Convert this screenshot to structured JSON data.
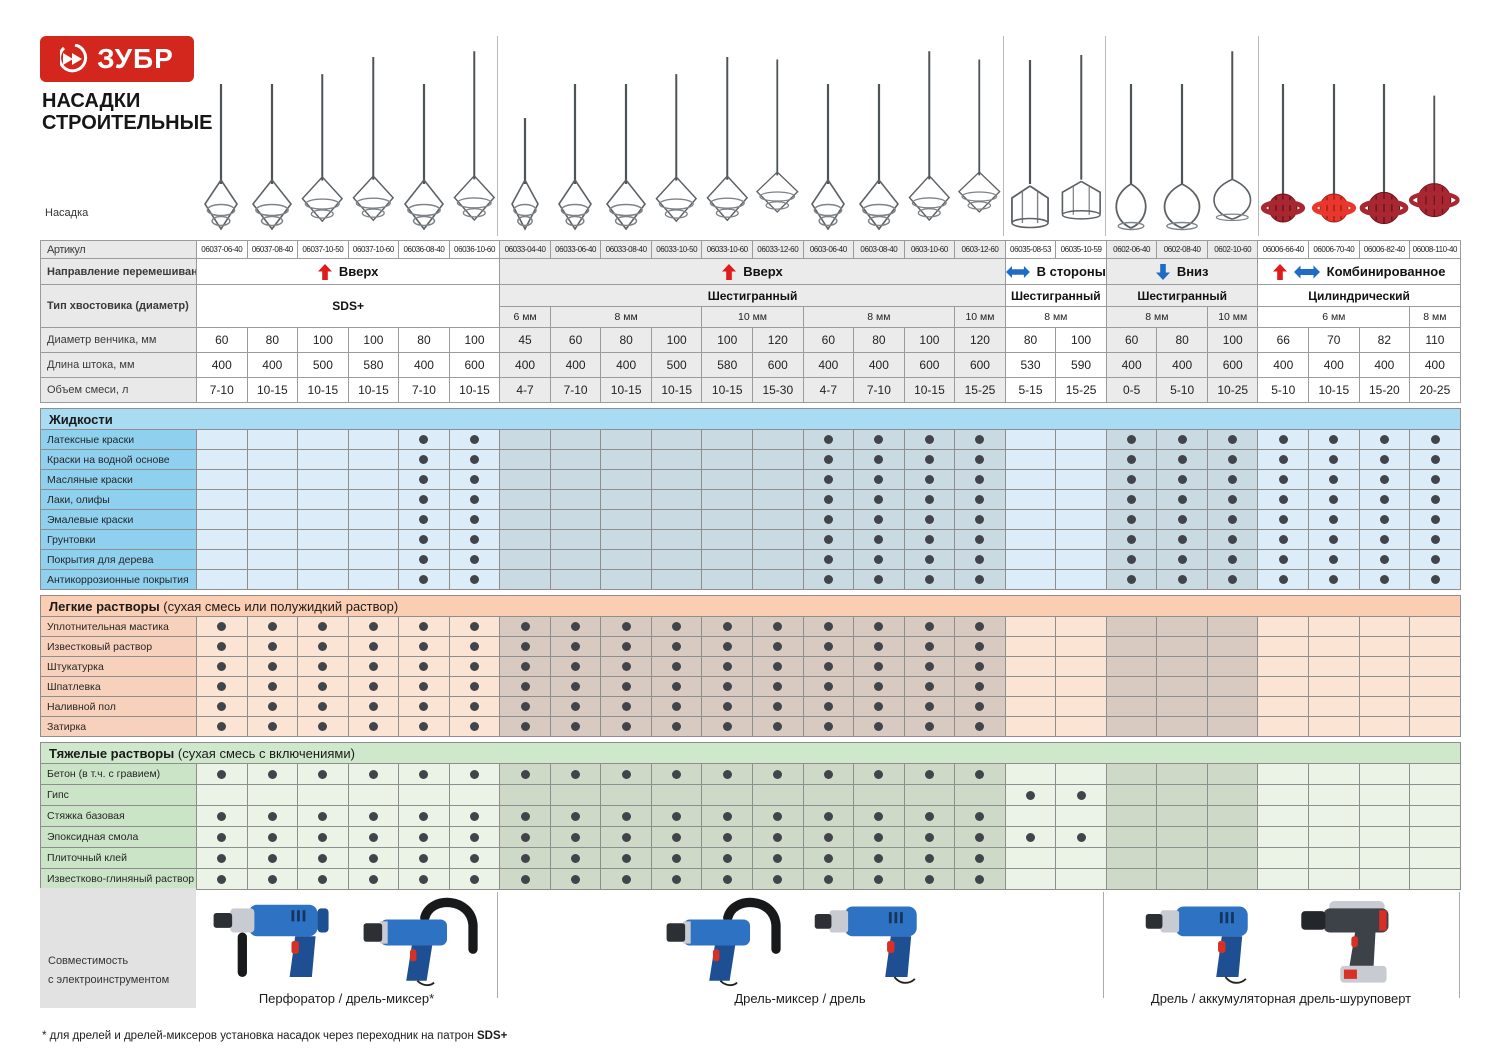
{
  "brand": {
    "logo_text": "ЗУБР",
    "title_line1": "НАСАДКИ",
    "title_line2": "СТРОИТЕЛЬНЫЕ"
  },
  "labels": {
    "nozzle": "Насадка",
    "article": "Артикул",
    "direction": "Направление перемешивания",
    "shank": "Тип хвостовика (диаметр)",
    "diameter": "Диаметр венчика, мм",
    "length": "Длина штока, мм",
    "volume": "Объем смеси, л"
  },
  "columns": [
    {
      "article": "06037-06-40",
      "diameter": "60",
      "length": "400",
      "volume": "7-10",
      "head": "spiral"
    },
    {
      "article": "06037-08-40",
      "diameter": "80",
      "length": "400",
      "volume": "10-15",
      "head": "spiral"
    },
    {
      "article": "06037-10-50",
      "diameter": "100",
      "length": "500",
      "volume": "10-15",
      "head": "spiral"
    },
    {
      "article": "06037-10-60",
      "diameter": "100",
      "length": "580",
      "volume": "10-15",
      "head": "spiral"
    },
    {
      "article": "06036-08-40",
      "diameter": "80",
      "length": "400",
      "volume": "7-10",
      "head": "spiral"
    },
    {
      "article": "06036-10-60",
      "diameter": "100",
      "length": "600",
      "volume": "10-15",
      "head": "spiral"
    },
    {
      "article": "06033-04-40",
      "diameter": "45",
      "length": "400",
      "volume": "4-7",
      "head": "spiral"
    },
    {
      "article": "06033-06-40",
      "diameter": "60",
      "length": "400",
      "volume": "7-10",
      "head": "spiral"
    },
    {
      "article": "06033-08-40",
      "diameter": "80",
      "length": "400",
      "volume": "10-15",
      "head": "spiral"
    },
    {
      "article": "06033-10-50",
      "diameter": "100",
      "length": "500",
      "volume": "10-15",
      "head": "spiral"
    },
    {
      "article": "06033-10-60",
      "diameter": "100",
      "length": "580",
      "volume": "10-15",
      "head": "spiral"
    },
    {
      "article": "06033-12-60",
      "diameter": "120",
      "length": "600",
      "volume": "15-30",
      "head": "spiral"
    },
    {
      "article": "0603-06-40",
      "diameter": "60",
      "length": "400",
      "volume": "4-7",
      "head": "spiral"
    },
    {
      "article": "0603-08-40",
      "diameter": "80",
      "length": "400",
      "volume": "7-10",
      "head": "spiral"
    },
    {
      "article": "0603-10-60",
      "diameter": "100",
      "length": "600",
      "volume": "10-15",
      "head": "spiral"
    },
    {
      "article": "0603-12-60",
      "diameter": "120",
      "length": "600",
      "volume": "15-25",
      "head": "spiral"
    },
    {
      "article": "06035-08-53",
      "diameter": "80",
      "length": "530",
      "volume": "5-15",
      "head": "cage"
    },
    {
      "article": "06035-10-59",
      "diameter": "100",
      "length": "590",
      "volume": "15-25",
      "head": "cage"
    },
    {
      "article": "0602-06-40",
      "diameter": "60",
      "length": "400",
      "volume": "0-5",
      "head": "paddle"
    },
    {
      "article": "0602-08-40",
      "diameter": "80",
      "length": "400",
      "volume": "5-10",
      "head": "paddle"
    },
    {
      "article": "0602-10-60",
      "diameter": "100",
      "length": "600",
      "volume": "10-25",
      "head": "paddle"
    },
    {
      "article": "06006-66-40",
      "diameter": "66",
      "length": "400",
      "volume": "5-10",
      "head": "ball"
    },
    {
      "article": "06006-70-40",
      "diameter": "70",
      "length": "400",
      "volume": "10-15",
      "head": "ball-bright"
    },
    {
      "article": "06006-82-40",
      "diameter": "82",
      "length": "400",
      "volume": "15-20",
      "head": "ball"
    },
    {
      "article": "06008-110-40",
      "diameter": "110",
      "length": "400",
      "volume": "20-25",
      "head": "ball"
    }
  ],
  "direction_groups": [
    {
      "label": "Вверх",
      "span": 6,
      "arrows": [
        "up"
      ]
    },
    {
      "label": "Вверх",
      "span": 10,
      "arrows": [
        "up"
      ]
    },
    {
      "label": "В стороны",
      "span": 2,
      "arrows": [
        "lr"
      ]
    },
    {
      "label": "Вниз",
      "span": 3,
      "arrows": [
        "down"
      ]
    },
    {
      "label": "Комбинированное",
      "span": 4,
      "arrows": [
        "up",
        "lr"
      ]
    }
  ],
  "shank_type_groups": [
    {
      "label": "SDS+",
      "span": 6,
      "rowspan": 2
    },
    {
      "label": "Шестигранный",
      "span": 10
    },
    {
      "label": "Шестигранный",
      "span": 2
    },
    {
      "label": "Шестигранный",
      "span": 3
    },
    {
      "label": "Цилиндрический",
      "span": 4
    }
  ],
  "shank_size_groups": [
    {
      "label": "6 мм",
      "span": 1
    },
    {
      "label": "8 мм",
      "span": 3
    },
    {
      "label": "10 мм",
      "span": 2
    },
    {
      "label": "8 мм",
      "span": 3
    },
    {
      "label": "10 мм",
      "span": 1
    },
    {
      "label": "8 мм",
      "span": 2
    },
    {
      "label": "8 мм",
      "span": 2
    },
    {
      "label": "10 мм",
      "span": 1
    },
    {
      "label": "6 мм",
      "span": 3
    },
    {
      "label": "8 мм",
      "span": 1
    }
  ],
  "bands": [
    {
      "span": 6,
      "shade": "light"
    },
    {
      "span": 10,
      "shade": "dark"
    },
    {
      "span": 2,
      "shade": "light"
    },
    {
      "span": 3,
      "shade": "dark"
    },
    {
      "span": 4,
      "shade": "light"
    }
  ],
  "sections": [
    {
      "id": "liquids",
      "title": "Жидкости",
      "subtitle": "",
      "colors": {
        "header": "#a9dcf3",
        "label": "#8fd0ee",
        "light": "#dcedf9",
        "dark": "#c9dae3"
      },
      "rows": [
        {
          "label": "Латексные краски",
          "dots": [
            5,
            6,
            13,
            14,
            15,
            16,
            19,
            20,
            21,
            22,
            23,
            24,
            25
          ]
        },
        {
          "label": "Краски на водной основе",
          "dots": [
            5,
            6,
            13,
            14,
            15,
            16,
            19,
            20,
            21,
            22,
            23,
            24,
            25
          ]
        },
        {
          "label": "Масляные краски",
          "dots": [
            5,
            6,
            13,
            14,
            15,
            16,
            19,
            20,
            21,
            22,
            23,
            24,
            25
          ]
        },
        {
          "label": "Лаки, олифы",
          "dots": [
            5,
            6,
            13,
            14,
            15,
            16,
            19,
            20,
            21,
            22,
            23,
            24,
            25
          ]
        },
        {
          "label": "Эмалевые краски",
          "dots": [
            5,
            6,
            13,
            14,
            15,
            16,
            19,
            20,
            21,
            22,
            23,
            24,
            25
          ]
        },
        {
          "label": "Грунтовки",
          "dots": [
            5,
            6,
            13,
            14,
            15,
            16,
            19,
            20,
            21,
            22,
            23,
            24,
            25
          ]
        },
        {
          "label": "Покрытия для дерева",
          "dots": [
            5,
            6,
            13,
            14,
            15,
            16,
            19,
            20,
            21,
            22,
            23,
            24,
            25
          ]
        },
        {
          "label": "Антикоррозионные покрытия",
          "dots": [
            5,
            6,
            13,
            14,
            15,
            16,
            19,
            20,
            21,
            22,
            23,
            24,
            25
          ]
        }
      ]
    },
    {
      "id": "light-mortars",
      "title": "Легкие растворы",
      "subtitle": " (сухая смесь или полужидкий раствор)",
      "colors": {
        "header": "#fbceb3",
        "label": "#f7d1bb",
        "light": "#fce4d5",
        "dark": "#d9cac1"
      },
      "rows": [
        {
          "label": "Уплотнительная мастика",
          "dots": [
            1,
            2,
            3,
            4,
            5,
            6,
            7,
            8,
            9,
            10,
            11,
            12,
            13,
            14,
            15,
            16
          ]
        },
        {
          "label": "Известковый раствор",
          "dots": [
            1,
            2,
            3,
            4,
            5,
            6,
            7,
            8,
            9,
            10,
            11,
            12,
            13,
            14,
            15,
            16
          ]
        },
        {
          "label": "Штукатурка",
          "dots": [
            1,
            2,
            3,
            4,
            5,
            6,
            7,
            8,
            9,
            10,
            11,
            12,
            13,
            14,
            15,
            16
          ]
        },
        {
          "label": "Шпатлевка",
          "dots": [
            1,
            2,
            3,
            4,
            5,
            6,
            7,
            8,
            9,
            10,
            11,
            12,
            13,
            14,
            15,
            16
          ]
        },
        {
          "label": "Наливной пол",
          "dots": [
            1,
            2,
            3,
            4,
            5,
            6,
            7,
            8,
            9,
            10,
            11,
            12,
            13,
            14,
            15,
            16
          ]
        },
        {
          "label": "Затирка",
          "dots": [
            1,
            2,
            3,
            4,
            5,
            6,
            7,
            8,
            9,
            10,
            11,
            12,
            13,
            14,
            15,
            16
          ]
        }
      ]
    },
    {
      "id": "heavy-mortars",
      "title": "Тяжелые растворы",
      "subtitle": " (сухая смесь с включениями)",
      "colors": {
        "header": "#cfe8cc",
        "label": "#cbe4c7",
        "light": "#eaf3e6",
        "dark": "#ced9c8"
      },
      "rows": [
        {
          "label": "Бетон (в т.ч. с гравием)",
          "dots": [
            1,
            2,
            3,
            4,
            5,
            6,
            7,
            8,
            9,
            10,
            11,
            12,
            13,
            14,
            15,
            16
          ]
        },
        {
          "label": "Гипс",
          "dots": [
            17,
            18
          ]
        },
        {
          "label": "Стяжка базовая",
          "dots": [
            1,
            2,
            3,
            4,
            5,
            6,
            7,
            8,
            9,
            10,
            11,
            12,
            13,
            14,
            15,
            16
          ]
        },
        {
          "label": "Эпоксидная смола",
          "dots": [
            1,
            2,
            3,
            4,
            5,
            6,
            7,
            8,
            9,
            10,
            11,
            12,
            13,
            14,
            15,
            16,
            17,
            18
          ]
        },
        {
          "label": "Плиточный клей",
          "dots": [
            1,
            2,
            3,
            4,
            5,
            6,
            7,
            8,
            9,
            10,
            11,
            12,
            13,
            14,
            15,
            16
          ]
        },
        {
          "label": "Известково-глиняный раствор",
          "dots": [
            1,
            2,
            3,
            4,
            5,
            6,
            7,
            8,
            9,
            10,
            11,
            12,
            13,
            14,
            15,
            16
          ]
        }
      ]
    }
  ],
  "compatibility": {
    "line1": "Совместимость",
    "line2": "с электроинструментом",
    "groups": [
      {
        "caption": "Перфоратор / дрель-миксер*",
        "tools": [
          "hammer-drill",
          "mixer-drill"
        ]
      },
      {
        "caption": "Дрель-миксер / дрель",
        "tools": [
          "mixer-drill",
          "drill"
        ]
      },
      {
        "caption": "Дрель / аккумуляторная дрель-шуруповерт",
        "tools": [
          "drill",
          "cordless-driver"
        ]
      }
    ]
  },
  "footnote": {
    "text": "* для дрелей и дрелей-миксеров установка насадок через переходник на патрон ",
    "bold": "SDS+"
  },
  "colors": {
    "brand_red": "#d3261c",
    "arrow_red": "#e01b1b",
    "arrow_blue": "#1d6cc6",
    "dot": "#41454b",
    "grid": "#9b9b9b",
    "spec_dark": "#ebebeb",
    "metal": "#5c6165",
    "metal_light": "#7e8388",
    "ball_dark": "#a92731",
    "ball_dark_edge": "#6d141c",
    "ball_bright": "#e8372c",
    "ball_bright_edge": "#a81f16",
    "tool_blue": "#2e72c4",
    "tool_blue_dark": "#1d4f92",
    "tool_black": "#17191b",
    "tool_silver": "#c8ccd2",
    "tool_red": "#d93025"
  }
}
